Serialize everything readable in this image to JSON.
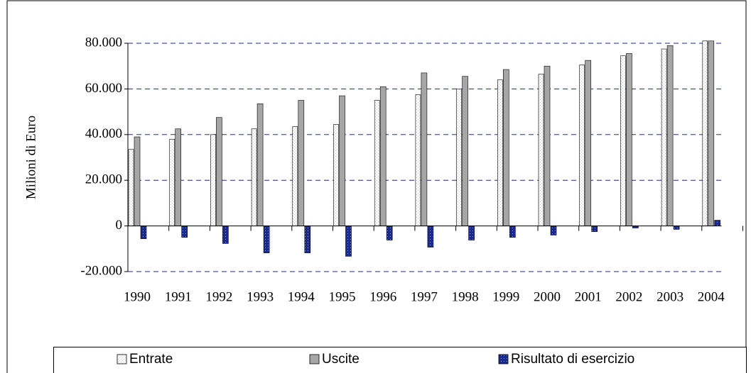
{
  "chart_data": {
    "type": "bar",
    "y_label": "Milioni di Euro",
    "categories": [
      "1990",
      "1991",
      "1992",
      "1993",
      "1994",
      "1995",
      "1996",
      "1997",
      "1998",
      "1999",
      "2000",
      "2001",
      "2002",
      "2003",
      "2004"
    ],
    "series": [
      {
        "name": "Entrate",
        "color": "#ffffff",
        "values": [
          33500,
          38000,
          40000,
          42500,
          43500,
          44500,
          55000,
          57500,
          60000,
          64000,
          66500,
          70500,
          74500,
          77500,
          81000
        ]
      },
      {
        "name": "Uscite",
        "color": "#a6a6a6",
        "values": [
          39000,
          42500,
          47500,
          53500,
          55000,
          57000,
          61000,
          67000,
          65500,
          68500,
          70000,
          72500,
          75500,
          79000,
          81000
        ]
      },
      {
        "name": "Risultato di esercizio",
        "color": "#1a2a8c",
        "values": [
          -5600,
          -5000,
          -7700,
          -11800,
          -11800,
          -13300,
          -6200,
          -9300,
          -6200,
          -5000,
          -4000,
          -2500,
          -900,
          -1500,
          2500
        ]
      }
    ],
    "ylim": [
      -20000,
      80000
    ],
    "yticks": [
      {
        "value": -20000,
        "label": "-20.000"
      },
      0,
      {
        "value": 20000,
        "label": "20.000"
      },
      {
        "value": 40000,
        "label": "40.000"
      },
      {
        "value": 60000,
        "label": "60.000"
      },
      {
        "value": 80000,
        "label": "80.000"
      }
    ],
    "grid": true
  }
}
